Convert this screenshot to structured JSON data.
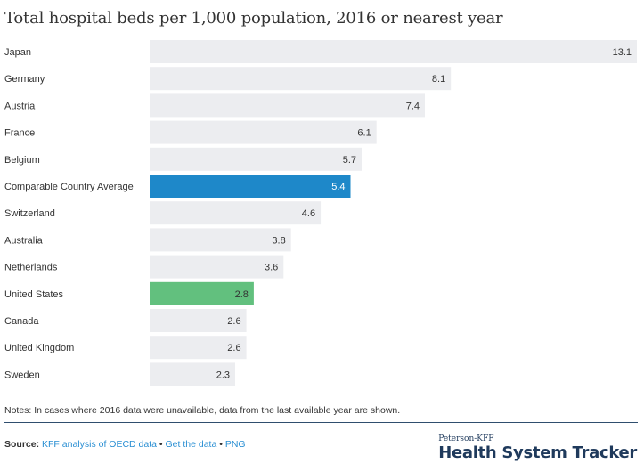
{
  "chart_data": {
    "type": "bar",
    "orientation": "horizontal",
    "title": "Total hospital beds per 1,000 population, 2016 or nearest year",
    "categories": [
      "Japan",
      "Germany",
      "Austria",
      "France",
      "Belgium",
      "Comparable Country Average",
      "Switzerland",
      "Australia",
      "Netherlands",
      "United States",
      "Canada",
      "United Kingdom",
      "Sweden"
    ],
    "values": [
      13.1,
      8.1,
      7.4,
      6.1,
      5.7,
      5.4,
      4.6,
      3.8,
      3.6,
      2.8,
      2.6,
      2.6,
      2.3
    ],
    "value_labels": [
      "13.1",
      "8.1",
      "7.4",
      "6.1",
      "5.7",
      "5.4",
      "4.6",
      "3.8",
      "3.6",
      "2.8",
      "2.6",
      "2.6",
      "2.3"
    ],
    "xlim": [
      0,
      13.1
    ],
    "grid": false,
    "colors": {
      "default": "#ecedf0",
      "highlight_average": "#1e88c9",
      "highlight_us": "#62c07e"
    },
    "highlights": {
      "Comparable Country Average": "highlight_average",
      "United States": "highlight_us"
    }
  },
  "footer": {
    "notes": "Notes: In cases where 2016 data were unavailable, data from the last available year are shown.",
    "source_label": "Source:",
    "source_link": "KFF analysis of OECD data",
    "separator": "•",
    "get_data_link": "Get the data",
    "png_link": "PNG"
  },
  "brand": {
    "top": "Peterson-KFF",
    "main": "Health System Tracker"
  }
}
